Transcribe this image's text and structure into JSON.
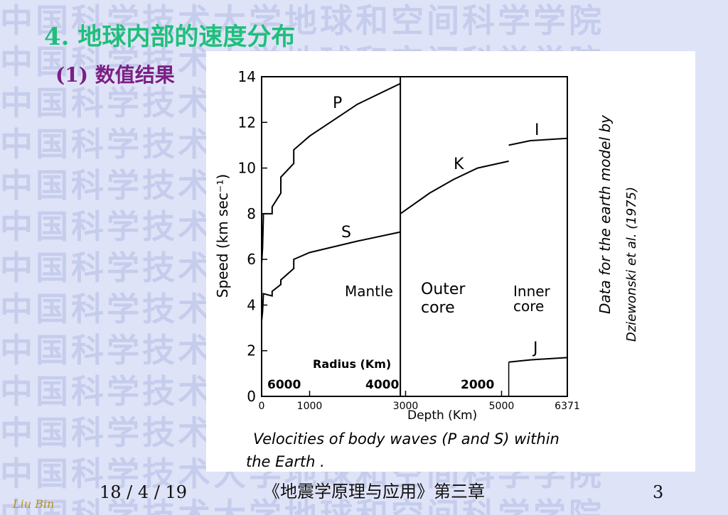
{
  "slide": {
    "title": "4. 地球内部的速度分布",
    "subtitle": "(1) 数值结果",
    "footer_date": "18 / 4 / 19",
    "footer_course": "《地震学原理与应用》第三章",
    "page_number": "3",
    "author": "Liu Bin",
    "watermark_text": "中国科学技术大学地球和空间科学学院"
  },
  "figure": {
    "y_axis_label": "Speed (km sec⁻¹)",
    "y_ticks": [
      "0",
      "2",
      "4",
      "6",
      "8",
      "10",
      "12",
      "14"
    ],
    "x_ticks": [
      "0",
      "1000",
      "3000",
      "5000",
      "6371"
    ],
    "depth_label": "Depth (Km)",
    "radius_label": "Radius (Km)",
    "radius_ticks": [
      "6000",
      "4000",
      "2000"
    ],
    "region_mantle": "Mantle",
    "region_outer": "Outer\ncore",
    "region_outer_1": "Outer",
    "region_outer_2": "core",
    "region_inner_1": "Inner",
    "region_inner_2": "core",
    "curve_labels": {
      "P": "P",
      "S": "S",
      "K": "K",
      "I": "I",
      "J": "J"
    },
    "side_note_1": "Data for the earth model by",
    "side_note_2": "Dziewonski et al. (1975)",
    "caption_1": "Velocities  of  body  waves (P and S)  within",
    "caption_2": "the Earth ."
  },
  "chart_data": {
    "type": "line",
    "xlabel": "Depth (Km)",
    "ylabel": "Speed (km sec⁻¹)",
    "xlim": [
      0,
      6371
    ],
    "ylim": [
      0,
      14
    ],
    "series": [
      {
        "name": "P",
        "x": [
          0,
          20,
          20,
          35,
          35,
          220,
          220,
          400,
          400,
          670,
          670,
          1000,
          2000,
          2891
        ],
        "y": [
          5.8,
          6.5,
          6.5,
          7.8,
          8.0,
          8.0,
          8.3,
          8.9,
          9.6,
          10.2,
          10.8,
          11.4,
          12.8,
          13.7
        ]
      },
      {
        "name": "K",
        "x": [
          2891,
          3500,
          4000,
          4500,
          5150
        ],
        "y": [
          8.0,
          8.9,
          9.5,
          10.0,
          10.3
        ]
      },
      {
        "name": "I",
        "x": [
          5150,
          5600,
          6371
        ],
        "y": [
          11.0,
          11.2,
          11.3
        ]
      },
      {
        "name": "S",
        "x": [
          0,
          20,
          20,
          35,
          35,
          220,
          220,
          400,
          400,
          670,
          670,
          1000,
          2000,
          2891
        ],
        "y": [
          3.3,
          3.7,
          3.7,
          4.4,
          4.5,
          4.4,
          4.6,
          4.9,
          5.1,
          5.6,
          6.0,
          6.3,
          6.8,
          7.2
        ]
      },
      {
        "name": "J",
        "x": [
          5150,
          5600,
          6371
        ],
        "y": [
          1.5,
          1.6,
          1.7
        ]
      }
    ]
  }
}
